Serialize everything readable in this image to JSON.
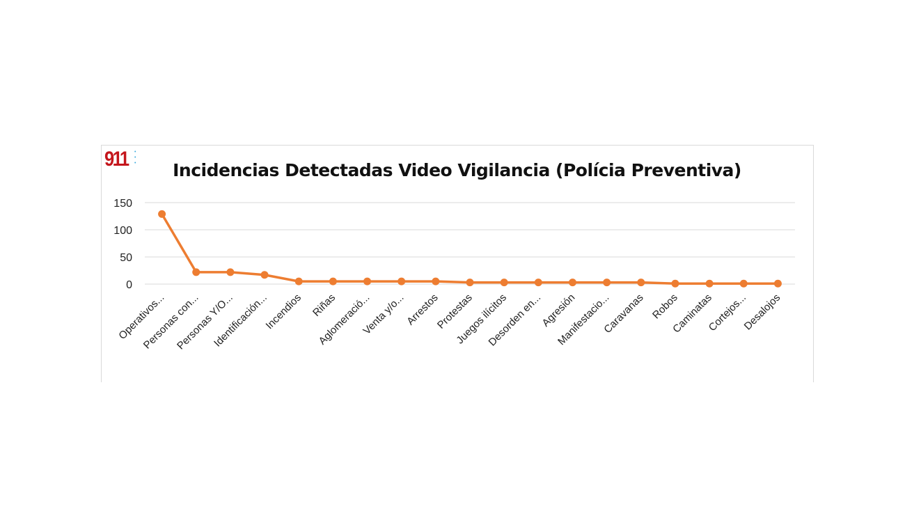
{
  "logo": {
    "text": "911"
  },
  "colors": {
    "line": "#ed7d31",
    "grid": "#d9d9d9"
  },
  "chart_data": {
    "type": "line",
    "title": "Incidencias Detectadas Video Vigilancia (Polícia Preventiva)",
    "xlabel": "",
    "ylabel": "",
    "ylim": [
      0,
      150
    ],
    "yticks": [
      0,
      50,
      100,
      150
    ],
    "grid": true,
    "legend": "none",
    "categories": [
      "Operativos...",
      "Personas con...",
      "Personas Y/O...",
      "Identificación...",
      "Incendios",
      "Riñas",
      "Aglomeració...",
      "Venta y/o...",
      "Arrestos",
      "Protestas",
      "Juegos ilícitos",
      "Desorden en...",
      "Agresión",
      "Manifestacio...",
      "Caravanas",
      "Robos",
      "Caminatas",
      "Cortejos...",
      "Desalojos"
    ],
    "series": [
      {
        "name": "Incidencias",
        "values": [
          129,
          22,
          22,
          17,
          5,
          5,
          5,
          5,
          5,
          3,
          3,
          3,
          3,
          3,
          3,
          1,
          1,
          1,
          1
        ]
      }
    ]
  }
}
